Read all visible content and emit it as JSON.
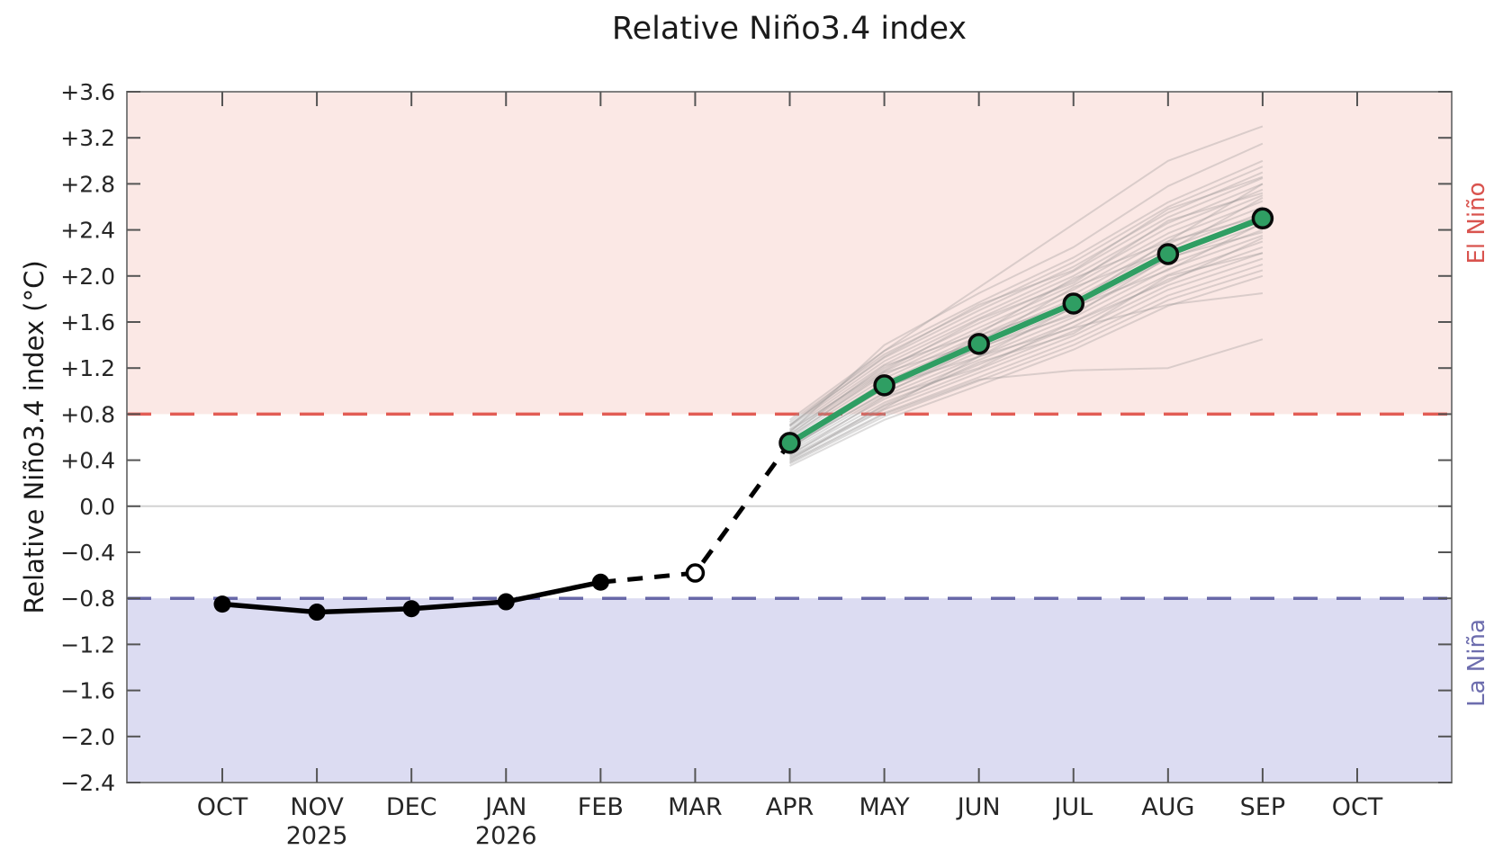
{
  "title": "Relative Niño3.4 index",
  "y_axis_label": "Relative Niño3.4 index (°C)",
  "region_labels": {
    "el_nino": "El Niño",
    "la_nina": "La Niña"
  },
  "chart_data": {
    "type": "line",
    "title": "Relative Niño3.4 index",
    "ylabel": "Relative Niño3.4 index (°C)",
    "ylim": [
      -2.4,
      3.6
    ],
    "ytick_step": 0.4,
    "ytick_labels": [
      "+3.6",
      "+3.2",
      "+2.8",
      "+2.4",
      "+2.0",
      "+1.6",
      "+1.2",
      "+0.8",
      "+0.4",
      "0.0",
      "−0.4",
      "−0.8",
      "−1.2",
      "−1.6",
      "−2.0",
      "−2.4"
    ],
    "x_categories": [
      "OCT",
      "NOV",
      "DEC",
      "JAN",
      "FEB",
      "MAR",
      "APR",
      "MAY",
      "JUN",
      "JUL",
      "AUG",
      "SEP",
      "OCT"
    ],
    "x_year_labels": [
      "",
      "2025",
      "",
      "2026",
      "",
      "",
      "",
      "",
      "",
      "",
      "",
      "",
      ""
    ],
    "grid": "zero-line-only",
    "el_nino_threshold": 0.8,
    "la_nina_threshold": -0.8,
    "series": [
      {
        "name": "observed",
        "style": "solid-black-markers",
        "x_start": 0,
        "values": [
          -0.85,
          -0.92,
          -0.89,
          -0.83,
          -0.66
        ]
      },
      {
        "name": "observed-to-forecast-bridge",
        "style": "dashed-black",
        "x_start": 4,
        "values": [
          -0.66,
          -0.58,
          0.55
        ]
      },
      {
        "name": "march-estimate",
        "style": "open-circle-marker",
        "x_start": 5,
        "values": [
          -0.58
        ]
      },
      {
        "name": "forecast-mean",
        "style": "solid-green-markers",
        "x_start": 6,
        "values": [
          0.55,
          1.05,
          1.41,
          1.76,
          2.19,
          2.5
        ]
      }
    ],
    "ensemble": {
      "x_start": 6,
      "members": [
        [
          0.35,
          0.75,
          1.05,
          1.36,
          1.74,
          2.0
        ],
        [
          0.37,
          0.78,
          1.09,
          1.4,
          1.79,
          2.05
        ],
        [
          0.39,
          0.81,
          1.12,
          1.44,
          1.83,
          2.1
        ],
        [
          0.41,
          0.84,
          1.16,
          1.48,
          1.88,
          2.15
        ],
        [
          0.43,
          0.87,
          1.19,
          1.52,
          1.92,
          2.2
        ],
        [
          0.45,
          0.9,
          1.23,
          1.56,
          1.97,
          2.25
        ],
        [
          0.47,
          0.93,
          1.27,
          1.6,
          2.01,
          2.3
        ],
        [
          0.49,
          0.96,
          1.3,
          1.64,
          2.06,
          2.35
        ],
        [
          0.51,
          0.99,
          1.34,
          1.68,
          2.1,
          2.4
        ],
        [
          0.53,
          1.02,
          1.37,
          1.72,
          2.15,
          2.45
        ],
        [
          0.55,
          1.05,
          1.41,
          1.76,
          2.19,
          2.5
        ],
        [
          0.57,
          1.08,
          1.45,
          1.8,
          2.24,
          2.55
        ],
        [
          0.59,
          1.11,
          1.48,
          1.84,
          2.28,
          2.6
        ],
        [
          0.61,
          1.14,
          1.52,
          1.88,
          2.33,
          2.65
        ],
        [
          0.63,
          1.17,
          1.55,
          1.92,
          2.37,
          2.7
        ],
        [
          0.65,
          1.2,
          1.59,
          1.96,
          2.42,
          2.75
        ],
        [
          0.67,
          1.23,
          1.63,
          2.0,
          2.46,
          2.8
        ],
        [
          0.69,
          1.26,
          1.66,
          2.04,
          2.51,
          2.85
        ],
        [
          0.71,
          1.29,
          1.7,
          2.08,
          2.55,
          2.9
        ],
        [
          0.73,
          1.32,
          1.73,
          2.12,
          2.6,
          2.95
        ],
        [
          0.75,
          1.35,
          1.77,
          2.16,
          2.64,
          3.0
        ],
        [
          0.44,
          0.95,
          1.2,
          1.6,
          1.95,
          2.33
        ],
        [
          0.5,
          1.04,
          1.3,
          1.73,
          2.05,
          2.46
        ],
        [
          0.58,
          1.02,
          1.48,
          1.76,
          2.3,
          2.52
        ],
        [
          0.62,
          1.22,
          1.5,
          1.98,
          2.3,
          2.8
        ],
        [
          0.7,
          1.3,
          1.75,
          2.05,
          2.58,
          2.86
        ],
        [
          0.4,
          0.88,
          1.25,
          1.5,
          2.0,
          2.2
        ],
        [
          0.6,
          1.16,
          1.42,
          1.9,
          2.22,
          2.68
        ],
        [
          0.52,
          0.98,
          1.38,
          1.66,
          2.16,
          2.38
        ],
        [
          0.66,
          1.18,
          1.62,
          1.94,
          2.48,
          2.72
        ],
        [
          0.38,
          0.8,
          1.1,
          1.18,
          1.2,
          1.45
        ],
        [
          0.7,
          1.35,
          1.9,
          2.45,
          3.0,
          3.3
        ],
        [
          0.64,
          1.4,
          1.85,
          2.25,
          2.78,
          3.15
        ],
        [
          0.42,
          0.85,
          1.3,
          1.55,
          1.75,
          1.85
        ]
      ]
    },
    "legend_position": "none",
    "colors": {
      "el_nino_band": "#fbe8e5",
      "la_nina_band": "#dcdcf2",
      "el_nino_dashed_line": "#e25d55",
      "la_nina_dashed_line": "#6868a8",
      "el_nino_text": "#d9534e",
      "la_nina_text": "#6d6dae",
      "zero_line": "#d2d2d2",
      "frame": "#7f7f7f",
      "tick": "#555555",
      "tick_text": "#262626",
      "observed_line": "#000000",
      "forecast_line": "#2f9e63",
      "ensemble_line": "#979595"
    }
  }
}
